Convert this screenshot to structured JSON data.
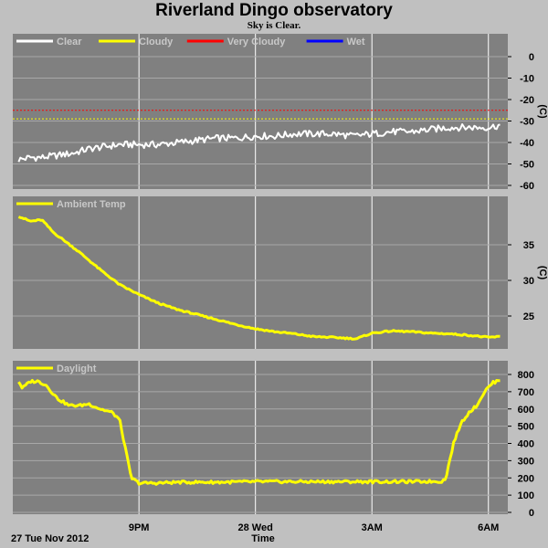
{
  "header": {
    "title": "Riverland Dingo observatory",
    "subtitle": "Sky is Clear."
  },
  "footer": {
    "start_label": "27 Tue Nov 2012",
    "axis_title": "Time"
  },
  "colors": {
    "background": "#c0c0c0",
    "plot_background": "#808080",
    "grid": "#ffffff",
    "clear": "#ffffff",
    "cloudy": "#ffff00",
    "very_cloudy": "#ff0000",
    "wet": "#0000ff",
    "series": "#ffff00"
  },
  "chart_data": [
    {
      "type": "line",
      "legend_placement": "top-left",
      "series": [
        {
          "name": "Clear",
          "color": "#ffffff"
        },
        {
          "name": "Cloudy",
          "color": "#ffff00"
        },
        {
          "name": "Very Cloudy",
          "color": "#ff0000"
        },
        {
          "name": "Wet",
          "color": "#0000ff"
        }
      ],
      "ylabel": "(C)",
      "ylim": [
        -60,
        5
      ],
      "yticks": [
        0,
        -10,
        -20,
        -30,
        -40,
        -50,
        -60
      ],
      "xlim": [
        17.75,
        30.5
      ],
      "xticks": [
        21,
        24,
        27,
        30
      ],
      "grid": true,
      "thresholds": [
        {
          "name": "Very Cloudy",
          "value": -25,
          "color": "#ff0000"
        },
        {
          "name": "Cloudy",
          "value": -29,
          "color": "#ffff00"
        }
      ],
      "x": [
        17.9,
        18.2,
        18.5,
        18.9,
        19.3,
        19.7,
        20.1,
        20.5,
        21.0,
        21.5,
        22.0,
        22.5,
        23.0,
        23.5,
        24.0,
        24.5,
        25.0,
        25.5,
        26.0,
        26.5,
        27.0,
        27.5,
        28.0,
        28.5,
        29.0,
        29.5,
        30.0,
        30.3
      ],
      "values": [
        -48,
        -47,
        -47,
        -46,
        -45,
        -43,
        -42,
        -41,
        -41,
        -41,
        -40,
        -39,
        -38,
        -38,
        -37,
        -37,
        -36,
        -36,
        -36,
        -37,
        -36,
        -35,
        -35,
        -34,
        -33,
        -33,
        -33,
        -32
      ]
    },
    {
      "type": "line",
      "legend_placement": "top-left",
      "series": [
        {
          "name": "Ambient Temp",
          "color": "#ffff00",
          "x": [
            17.9,
            18.2,
            18.5,
            18.8,
            19.1,
            19.5,
            20.0,
            20.5,
            21.0,
            21.5,
            22.0,
            22.5,
            23.0,
            23.5,
            24.0,
            24.5,
            25.0,
            25.5,
            26.0,
            26.3,
            26.6,
            27.0,
            27.5,
            28.0,
            28.5,
            29.0,
            29.5,
            30.0,
            30.3
          ],
          "values": [
            39.0,
            38.3,
            38.5,
            36.7,
            35.5,
            33.8,
            31.5,
            29.4,
            28.0,
            26.8,
            25.9,
            25.2,
            24.5,
            23.8,
            23.2,
            22.8,
            22.5,
            22.1,
            22.0,
            21.9,
            21.8,
            22.6,
            22.9,
            22.8,
            22.6,
            22.5,
            22.3,
            22.0,
            22.1
          ]
        }
      ],
      "ylabel": "(C)",
      "ylim": [
        21,
        40
      ],
      "yticks": [
        25,
        30,
        35
      ],
      "xlim": [
        17.75,
        30.5
      ],
      "xticks": [
        21,
        24,
        27,
        30
      ],
      "grid": true
    },
    {
      "type": "line",
      "legend_placement": "top-left",
      "series": [
        {
          "name": "Daylight",
          "color": "#ffff00",
          "x": [
            17.9,
            18.0,
            18.2,
            18.4,
            18.6,
            18.9,
            19.2,
            19.5,
            19.7,
            20.0,
            20.3,
            20.5,
            20.8,
            21.0,
            21.5,
            22.0,
            23.0,
            24.0,
            25.0,
            26.0,
            27.0,
            28.0,
            28.8,
            28.9,
            29.1,
            29.3,
            29.5,
            29.7,
            29.9,
            30.1,
            30.3
          ],
          "values": [
            760,
            720,
            760,
            760,
            740,
            660,
            620,
            620,
            630,
            600,
            580,
            540,
            200,
            170,
            170,
            175,
            175,
            178,
            178,
            178,
            178,
            178,
            180,
            195,
            400,
            520,
            580,
            620,
            700,
            750,
            770
          ]
        }
      ],
      "ylim": [
        0,
        830
      ],
      "yticks": [
        0,
        100,
        200,
        300,
        400,
        500,
        600,
        700,
        800
      ],
      "xlim": [
        17.75,
        30.5
      ],
      "xticks": [
        21,
        24,
        27,
        30
      ],
      "xtick_labels": [
        "9PM",
        "28 Wed",
        "3AM",
        "6AM"
      ],
      "grid": true
    }
  ]
}
